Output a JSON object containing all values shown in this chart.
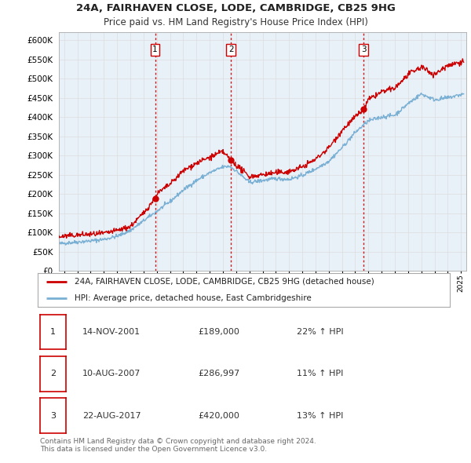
{
  "title": "24A, FAIRHAVEN CLOSE, LODE, CAMBRIDGE, CB25 9HG",
  "subtitle": "Price paid vs. HM Land Registry's House Price Index (HPI)",
  "ylim": [
    0,
    620000
  ],
  "yticks": [
    0,
    50000,
    100000,
    150000,
    200000,
    250000,
    300000,
    350000,
    400000,
    450000,
    500000,
    550000,
    600000
  ],
  "xlim": [
    1994.6,
    2025.4
  ],
  "sale_dates": [
    2001.87,
    2007.61,
    2017.64
  ],
  "sale_prices": [
    189000,
    286997,
    420000
  ],
  "sale_labels": [
    "1",
    "2",
    "3"
  ],
  "legend_line1": "24A, FAIRHAVEN CLOSE, LODE, CAMBRIDGE, CB25 9HG (detached house)",
  "legend_line2": "HPI: Average price, detached house, East Cambridgeshire",
  "table_data": [
    [
      "1",
      "14-NOV-2001",
      "£189,000",
      "22% ↑ HPI"
    ],
    [
      "2",
      "10-AUG-2007",
      "£286,997",
      "11% ↑ HPI"
    ],
    [
      "3",
      "22-AUG-2017",
      "£420,000",
      "13% ↑ HPI"
    ]
  ],
  "footer": "Contains HM Land Registry data © Crown copyright and database right 2024.\nThis data is licensed under the Open Government Licence v3.0.",
  "line_color_red": "#cc0000",
  "line_color_blue": "#7ab0d4",
  "grid_color": "#dddddd",
  "chart_bg": "#e8f0f8"
}
